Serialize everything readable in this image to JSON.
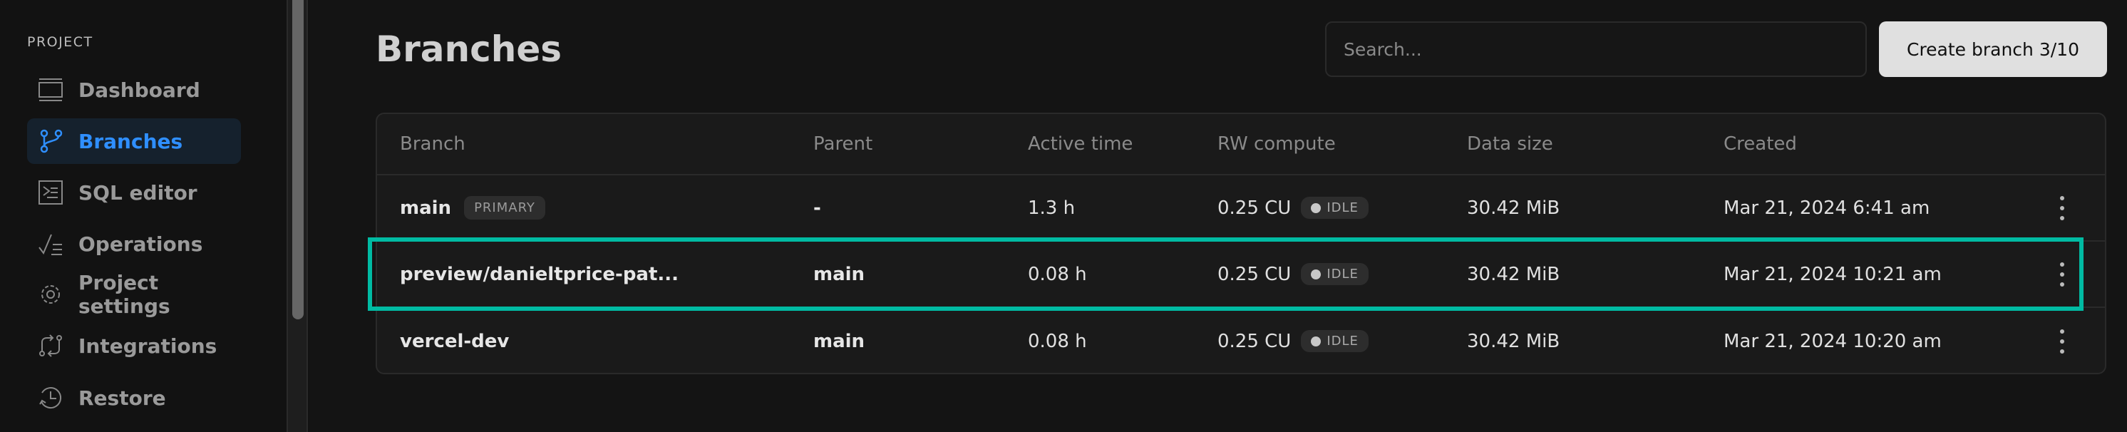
{
  "sidebar": {
    "section": "PROJECT",
    "items": [
      {
        "label": "Dashboard",
        "icon": "dashboard-icon"
      },
      {
        "label": "Branches",
        "icon": "branch-icon",
        "active": true
      },
      {
        "label": "SQL editor",
        "icon": "terminal-icon"
      },
      {
        "label": "Operations",
        "icon": "operations-icon"
      },
      {
        "label": "Project settings",
        "icon": "gear-icon"
      },
      {
        "label": "Integrations",
        "icon": "integrations-icon"
      },
      {
        "label": "Restore",
        "icon": "restore-icon"
      }
    ]
  },
  "header": {
    "title": "Branches",
    "search_placeholder": "Search...",
    "create_label": "Create branch 3/10"
  },
  "table": {
    "columns": [
      "Branch",
      "Parent",
      "Active time",
      "RW compute",
      "Data size",
      "Created"
    ],
    "rows": [
      {
        "branch": "main",
        "badge": "PRIMARY",
        "parent": "-",
        "active_time": "1.3 h",
        "compute": "0.25 CU",
        "status": "IDLE",
        "size": "30.42 MiB",
        "created": "Mar 21, 2024 6:41 am"
      },
      {
        "branch": "preview/danieltprice-pat...",
        "parent": "main",
        "active_time": "0.08 h",
        "compute": "0.25 CU",
        "status": "IDLE",
        "size": "30.42 MiB",
        "created": "Mar 21, 2024 10:21 am",
        "highlighted": true
      },
      {
        "branch": "vercel-dev",
        "parent": "main",
        "active_time": "0.08 h",
        "compute": "0.25 CU",
        "status": "IDLE",
        "size": "30.42 MiB",
        "created": "Mar 21, 2024 10:20 am"
      }
    ]
  },
  "colors": {
    "accent": "#2f8fff",
    "highlight": "#00bba3"
  }
}
